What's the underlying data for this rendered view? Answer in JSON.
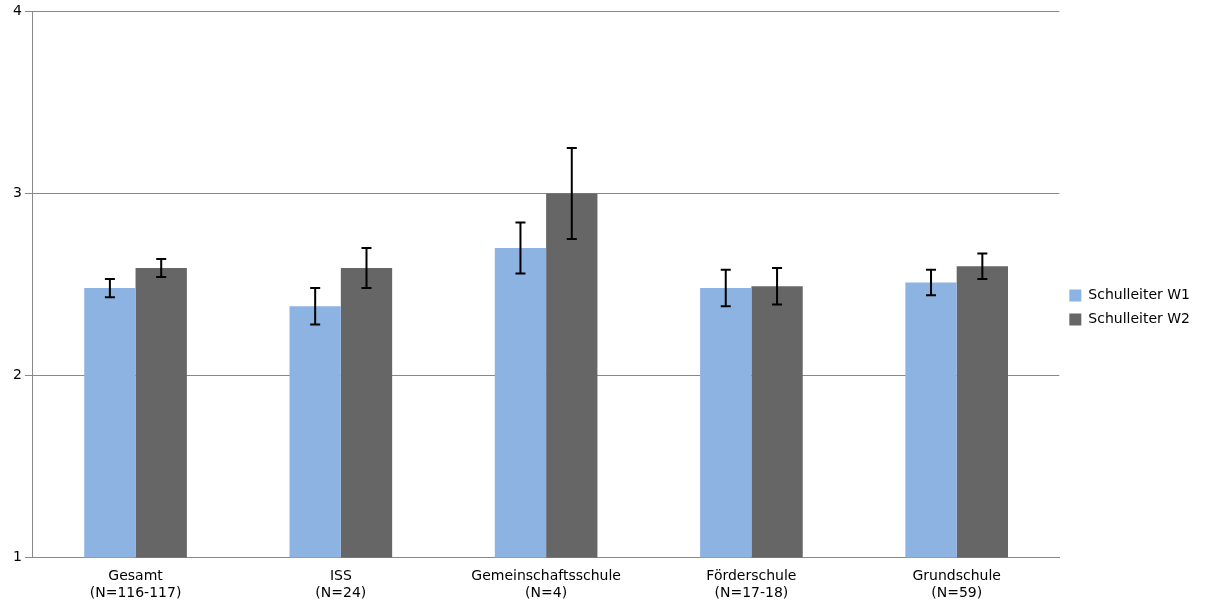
{
  "chart_data": {
    "type": "bar",
    "categories": [
      "Gesamt\n(N=116-117)",
      "ISS\n(N=24)",
      "Gemeinschaftsschule\n(N=4)",
      "Förderschule\n(N=17-18)",
      "Grundschule\n(N=59)"
    ],
    "series": [
      {
        "name": "Schulleiter W1",
        "color": "#8db3e2",
        "values": [
          2.48,
          2.38,
          2.7,
          2.48,
          2.51
        ],
        "errors": [
          0.05,
          0.1,
          0.14,
          0.1,
          0.07
        ]
      },
      {
        "name": "Schulleiter W2",
        "color": "#666666",
        "values": [
          2.59,
          2.59,
          3.0,
          2.49,
          2.6
        ],
        "errors": [
          0.05,
          0.11,
          0.25,
          0.1,
          0.07
        ]
      }
    ],
    "ylim": [
      1,
      4
    ],
    "yticks": [
      1,
      2,
      3,
      4
    ],
    "grid": "y",
    "legend": "right"
  }
}
